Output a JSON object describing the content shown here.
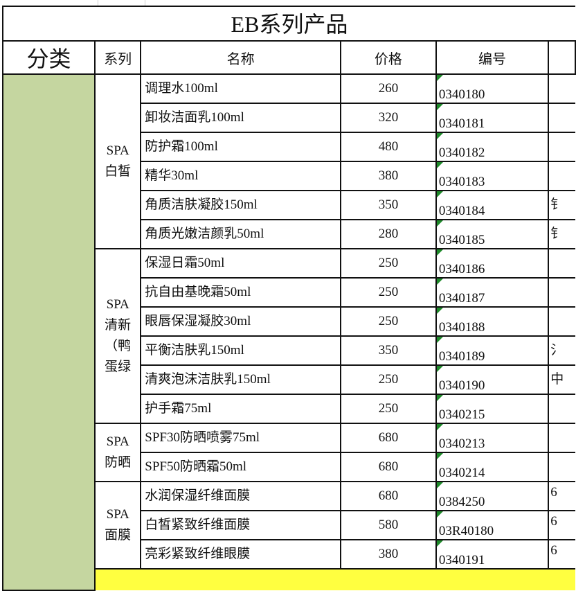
{
  "title": "EB系列产品",
  "headers": {
    "category": "分类",
    "series": "系列",
    "name": "名称",
    "price": "价格",
    "code": "编号"
  },
  "colors": {
    "category_fill": "#c5d6a0",
    "footer_fill": "#ffff40",
    "comment_marker": "#1e8a2a"
  },
  "groups": [
    {
      "series_lines": [
        "SPA",
        "白皙"
      ],
      "rows": [
        {
          "name": "调理水100ml",
          "price": "260",
          "code": "0340180",
          "extra": ""
        },
        {
          "name": "卸妆洁面乳100ml",
          "price": "320",
          "code": "0340181",
          "extra": ""
        },
        {
          "name": "防护霜100ml",
          "price": "480",
          "code": "0340182",
          "extra": ""
        },
        {
          "name": "精华30ml",
          "price": "380",
          "code": "0340183",
          "extra": ""
        },
        {
          "name": "角质洁肤凝胶150ml",
          "price": "350",
          "code": "0340184",
          "extra": "钅"
        },
        {
          "name": "角质光嫩洁颜乳50ml",
          "price": "280",
          "code": "0340185",
          "extra": "钅"
        }
      ]
    },
    {
      "series_lines": [
        "SPA",
        "清新",
        "（鸭",
        "蛋绿"
      ],
      "rows": [
        {
          "name": "保湿日霜50ml",
          "price": "250",
          "code": "0340186",
          "extra": ""
        },
        {
          "name": "抗自由基晚霜50ml",
          "price": "250",
          "code": "0340187",
          "extra": ""
        },
        {
          "name": "眼唇保湿凝胶30ml",
          "price": "250",
          "code": "0340188",
          "extra": ""
        },
        {
          "name": "平衡洁肤乳150ml",
          "price": "350",
          "code": "0340189",
          "extra": "氵"
        },
        {
          "name": "清爽泡沫洁肤乳150ml",
          "price": "250",
          "code": "0340190",
          "extra": "中"
        },
        {
          "name": "护手霜75ml",
          "price": "250",
          "code": "0340215",
          "extra": ""
        }
      ]
    },
    {
      "series_lines": [
        "SPA",
        "防晒"
      ],
      "rows": [
        {
          "name": "SPF30防晒喷雾75ml",
          "price": "680",
          "code": "0340213",
          "extra": ""
        },
        {
          "name": "SPF50防晒霜50ml",
          "price": "680",
          "code": "0340214",
          "extra": ""
        }
      ]
    },
    {
      "series_lines": [
        "SPA",
        "面膜"
      ],
      "rows": [
        {
          "name": "水润保湿纤维面膜",
          "price": "680",
          "code": "0384250",
          "extra": "6"
        },
        {
          "name": "白皙紧致纤维面膜",
          "price": "580",
          "code": "03R40180",
          "extra": "6"
        },
        {
          "name": "亮彩紧致纤维眼膜",
          "price": "380",
          "code": "0340191",
          "extra": "6"
        }
      ]
    }
  ]
}
